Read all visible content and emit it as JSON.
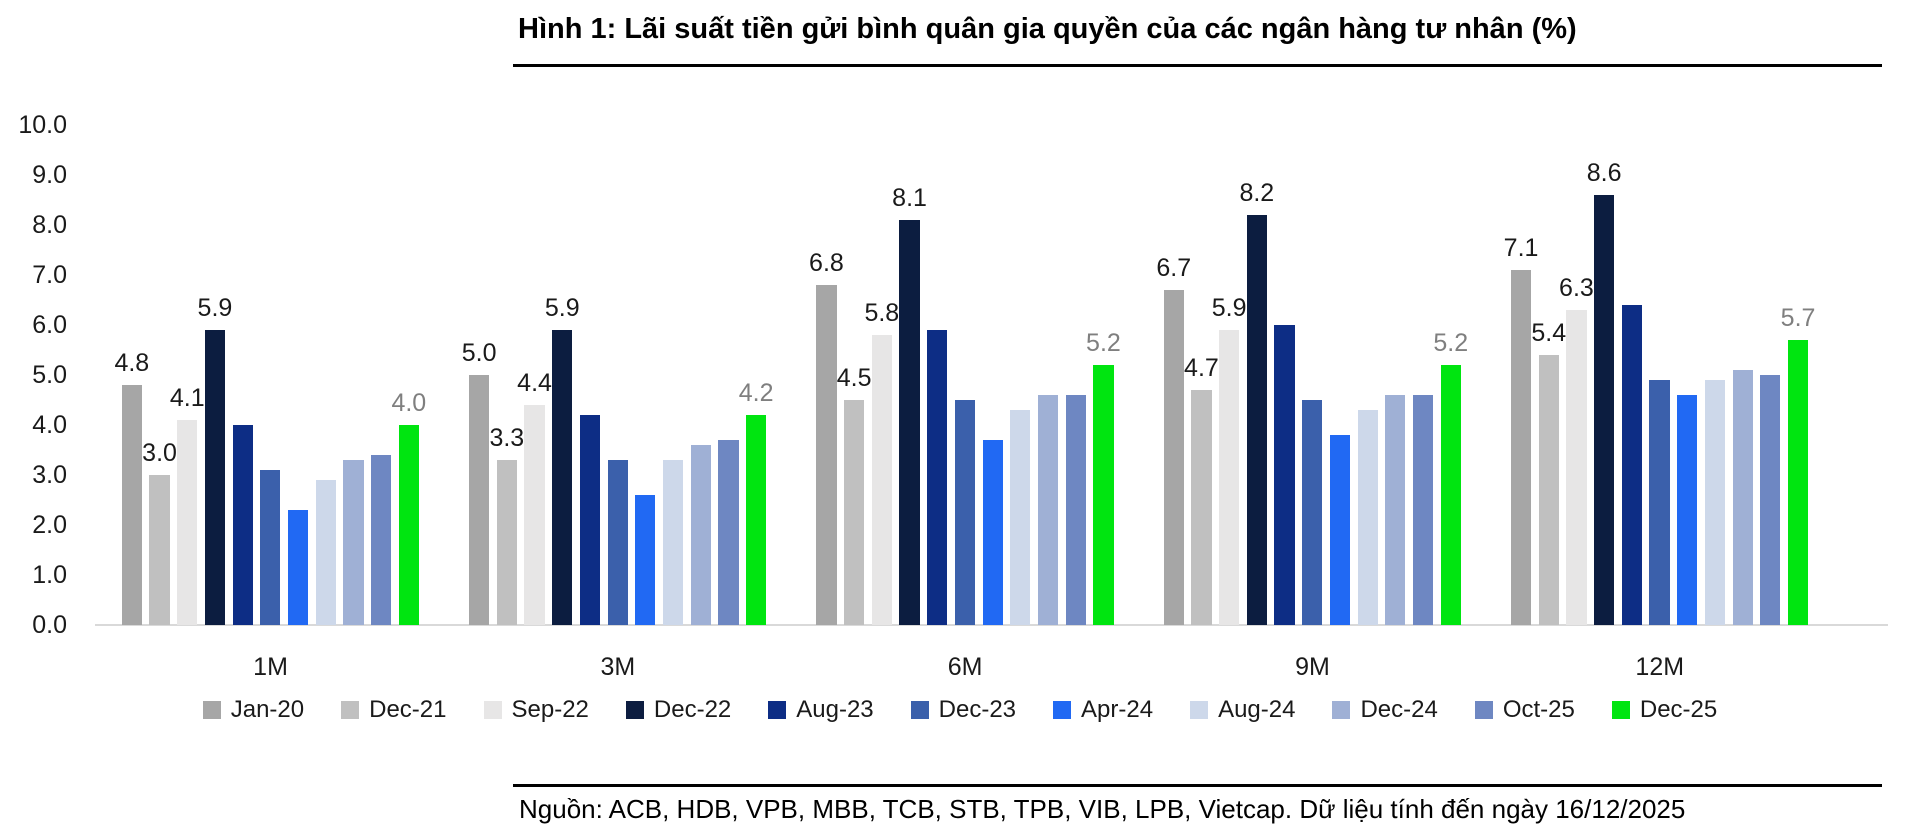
{
  "title": "Hình 1: Lãi suất tiền gửi bình quân gia quyền của các ngân hàng tư nhân (%)",
  "source": "Nguồn: ACB, HDB, VPB, MBB, TCB, STB, TPB, VIB, LPB, Vietcap. Dữ liệu tính đến ngày 16/12/2025",
  "y_axis": {
    "ticks": [
      "0.0",
      "1.0",
      "2.0",
      "3.0",
      "4.0",
      "5.0",
      "6.0",
      "7.0",
      "8.0",
      "9.0",
      "10.0"
    ]
  },
  "chart_data": {
    "type": "bar",
    "title": "Hình 1: Lãi suất tiền gửi bình quân gia quyền của các ngân hàng tư nhân (%)",
    "categories": [
      "1M",
      "3M",
      "6M",
      "9M",
      "12M"
    ],
    "series": [
      {
        "name": "Jan-20",
        "color": "#a6a6a6",
        "values": [
          4.8,
          5.0,
          6.8,
          6.7,
          7.1
        ],
        "labeled": true,
        "label_color": "#1a1a1a"
      },
      {
        "name": "Dec-21",
        "color": "#c0c0c0",
        "values": [
          3.0,
          3.3,
          4.5,
          4.7,
          5.4
        ],
        "labeled": true,
        "label_color": "#1a1a1a"
      },
      {
        "name": "Sep-22",
        "color": "#e7e6e6",
        "values": [
          4.1,
          4.4,
          5.8,
          5.9,
          6.3
        ],
        "labeled": true,
        "label_color": "#1a1a1a"
      },
      {
        "name": "Dec-22",
        "color": "#0c1d40",
        "values": [
          5.9,
          5.9,
          8.1,
          8.2,
          8.6
        ],
        "labeled": true,
        "label_color": "#1a1a1a"
      },
      {
        "name": "Aug-23",
        "color": "#0d2d85",
        "values": [
          4.0,
          4.2,
          5.9,
          6.0,
          6.4
        ],
        "labeled": false,
        "label_color": "#1a1a1a"
      },
      {
        "name": "Dec-23",
        "color": "#3b60ab",
        "values": [
          3.1,
          3.3,
          4.5,
          4.5,
          4.9
        ],
        "labeled": false,
        "label_color": "#1a1a1a"
      },
      {
        "name": "Apr-24",
        "color": "#2169f3",
        "values": [
          2.3,
          2.6,
          3.7,
          3.8,
          4.6
        ],
        "labeled": false,
        "label_color": "#1a1a1a"
      },
      {
        "name": "Aug-24",
        "color": "#cdd8ea",
        "values": [
          2.9,
          3.3,
          4.3,
          4.3,
          4.9
        ],
        "labeled": false,
        "label_color": "#1a1a1a"
      },
      {
        "name": "Dec-24",
        "color": "#9fb0d5",
        "values": [
          3.3,
          3.6,
          4.6,
          4.6,
          5.1
        ],
        "labeled": false,
        "label_color": "#1a1a1a"
      },
      {
        "name": "Oct-25",
        "color": "#6e87c2",
        "values": [
          3.4,
          3.7,
          4.6,
          4.6,
          5.0
        ],
        "labeled": false,
        "label_color": "#1a1a1a"
      },
      {
        "name": "Dec-25",
        "color": "#00e510",
        "values": [
          4.0,
          4.2,
          5.2,
          5.2,
          5.7
        ],
        "labeled": true,
        "label_color": "#7f7f7f"
      }
    ],
    "ylim": [
      0,
      10
    ],
    "ytick_step": 1.0,
    "grid": false,
    "legend_position": "bottom",
    "value_labels": "shown for series Jan-20, Dec-21, Sep-22, Dec-22 (black) and Dec-25 (gray); other series unlabeled"
  }
}
